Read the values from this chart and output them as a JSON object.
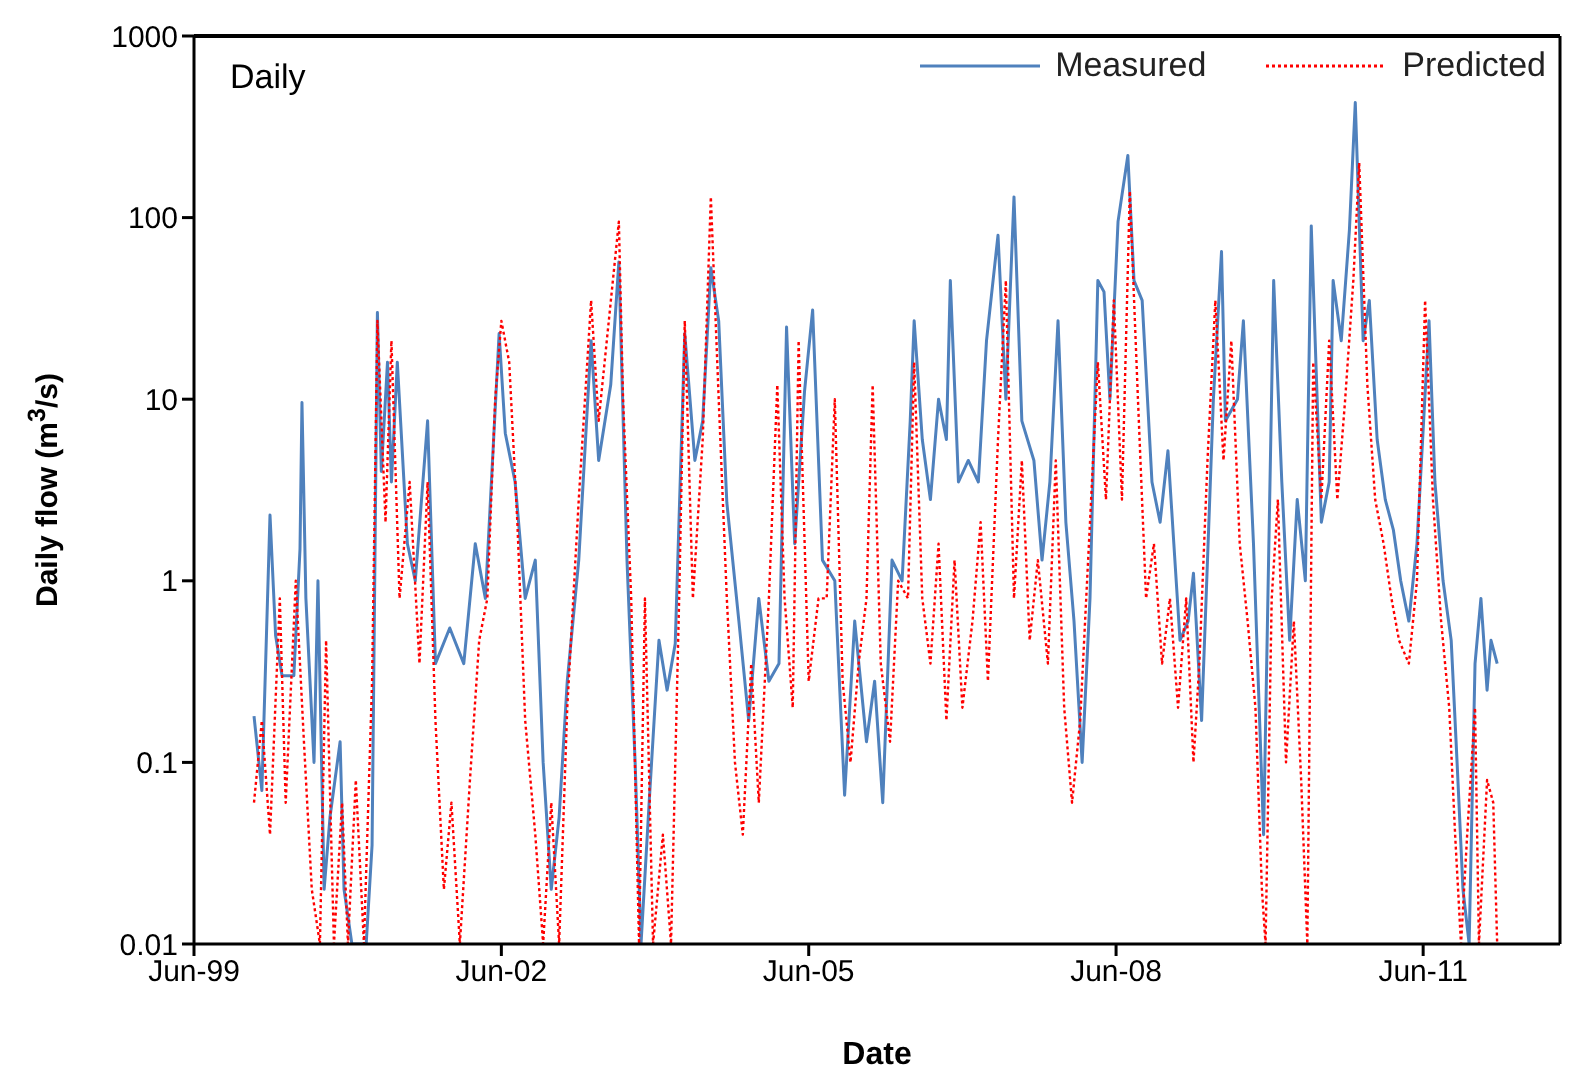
{
  "chart_data": {
    "type": "line",
    "title": "Daily",
    "xlabel": "Date",
    "ylabel": "Daily flow (m$^{3}$/s)",
    "xlim": [
      "1999-06-01",
      "2012-10-01"
    ],
    "xticks": [
      {
        "value": "1999-06-01",
        "label": "Jun-99"
      },
      {
        "value": "2002-06-01",
        "label": "Jun-02"
      },
      {
        "value": "2005-06-01",
        "label": "Jun-05"
      },
      {
        "value": "2008-06-01",
        "label": "Jun-08"
      },
      {
        "value": "2011-06-01",
        "label": "Jun-11"
      }
    ],
    "ylim": [
      0.01,
      1000
    ],
    "yticks": [
      0.01,
      0.1,
      1,
      10,
      100,
      1000
    ],
    "log": "y",
    "legend": "top right",
    "marker": "none",
    "series": [
      {
        "name": "Measured",
        "color": "#4f81bd",
        "line_style": "solid",
        "x": [
          "2000-01-01",
          "2000-01-29",
          "2000-02-27",
          "2000-03-18",
          "2000-04-10",
          "2000-05-22",
          "2000-06-13",
          "2000-06-20",
          "2000-07-04",
          "2000-08-02",
          "2000-08-16",
          "2000-09-07",
          "2000-09-28",
          "2000-11-03",
          "2000-11-17",
          "2000-12-15",
          "2001-02-04",
          "2001-02-25",
          "2001-03-16",
          "2001-03-30",
          "2001-04-21",
          "2001-05-05",
          "2001-05-26",
          "2001-07-01",
          "2001-07-29",
          "2001-09-11",
          "2001-10-09",
          "2001-11-29",
          "2002-01-18",
          "2002-02-28",
          "2002-04-05",
          "2002-05-24",
          "2002-06-15",
          "2002-07-20",
          "2002-08-25",
          "2002-09-30",
          "2002-10-28",
          "2002-11-26",
          "2002-12-24",
          "2003-01-22",
          "2003-03-04",
          "2003-04-17",
          "2003-05-14",
          "2003-06-26",
          "2003-07-25",
          "2003-08-23",
          "2003-09-21",
          "2003-10-12",
          "2003-11-10",
          "2003-12-15",
          "2004-01-13",
          "2004-02-11",
          "2004-03-16",
          "2004-04-21",
          "2004-05-19",
          "2004-06-17",
          "2004-07-15",
          "2004-08-13",
          "2004-09-25",
          "2004-10-30",
          "2004-12-05",
          "2005-01-10",
          "2005-02-15",
          "2005-03-14",
          "2005-04-12",
          "2005-05-17",
          "2005-06-15",
          "2005-07-20",
          "2005-09-02",
          "2005-10-07",
          "2005-11-12",
          "2005-12-24",
          "2006-01-22",
          "2006-02-20",
          "2006-03-25",
          "2006-04-30",
          "2006-05-29",
          "2006-06-12",
          "2006-07-11",
          "2006-08-09",
          "2006-09-07",
          "2006-10-05",
          "2006-10-19",
          "2006-11-17",
          "2006-12-22",
          "2007-01-27",
          "2007-02-25",
          "2007-04-07",
          "2007-05-05",
          "2007-06-03",
          "2007-07-01",
          "2007-08-13",
          "2007-09-11",
          "2007-10-09",
          "2007-11-07",
          "2007-12-05",
          "2008-01-03",
          "2008-02-01",
          "2008-02-29",
          "2008-03-28",
          "2008-04-19",
          "2008-05-10",
          "2008-06-08",
          "2008-07-13",
          "2008-08-04",
          "2008-09-02",
          "2008-10-07",
          "2008-11-05",
          "2008-12-03",
          "2008-12-24",
          "2009-01-15",
          "2009-02-13",
          "2009-03-04",
          "2009-04-02",
          "2009-04-23",
          "2009-05-14",
          "2009-06-12",
          "2009-06-26",
          "2009-08-08",
          "2009-08-29",
          "2009-10-04",
          "2009-11-09",
          "2009-12-15",
          "2010-01-13",
          "2010-02-10",
          "2010-03-09",
          "2010-04-07",
          "2010-04-28",
          "2010-06-03",
          "2010-07-01",
          "2010-07-15",
          "2010-08-13",
          "2010-09-11",
          "2010-10-02",
          "2010-10-30",
          "2010-11-21",
          "2010-12-19",
          "2011-01-17",
          "2011-02-15",
          "2011-03-13",
          "2011-04-11",
          "2011-05-10",
          "2011-06-22",
          "2011-07-13",
          "2011-08-11",
          "2011-09-09",
          "2011-09-30",
          "2011-10-21",
          "2011-11-12",
          "2011-12-03",
          "2011-12-24",
          "2012-01-15",
          "2012-01-29",
          "2012-02-20"
        ],
        "values": [
          0.18,
          0.07,
          2.3,
          0.5,
          0.3,
          0.3,
          1.5,
          9.6,
          0.8,
          0.1,
          1,
          0.02,
          0.05,
          0.13,
          0.02,
          0.01,
          0.01,
          0.035,
          30,
          4,
          16,
          3.5,
          16,
          1.6,
          1,
          7.6,
          0.35,
          0.55,
          0.35,
          1.6,
          0.8,
          23,
          6.5,
          3.5,
          0.8,
          1.3,
          0.1,
          0.02,
          0.05,
          0.28,
          1.3,
          21,
          4.6,
          12,
          57,
          1.3,
          0.1,
          0.01,
          0.06,
          0.47,
          0.25,
          0.45,
          23,
          4.6,
          7.6,
          53,
          27,
          2.7,
          0.6,
          0.17,
          0.8,
          0.28,
          0.35,
          25,
          1.6,
          11,
          31,
          1.3,
          1,
          0.066,
          0.6,
          0.13,
          0.28,
          0.06,
          1.3,
          1,
          7.6,
          27,
          6,
          2.8,
          10,
          6,
          45,
          3.5,
          4.6,
          3.5,
          21,
          80,
          10,
          130,
          7.6,
          4.6,
          1.3,
          3.5,
          27,
          2.1,
          0.6,
          0.1,
          0.8,
          45,
          39,
          10,
          95,
          220,
          45,
          35,
          3.5,
          2.1,
          5.2,
          1.6,
          0.47,
          0.6,
          1.1,
          0.17,
          1.3,
          10,
          65,
          7.6,
          10,
          27,
          1.6,
          0.04,
          45,
          3.5,
          0.47,
          2.8,
          1,
          90,
          2.1,
          3.5,
          45,
          21,
          85,
          430,
          21,
          35,
          6,
          2.8,
          1.9,
          1,
          0.6,
          1.6,
          27,
          3.5,
          1,
          0.47,
          0.1,
          0.02,
          0.01,
          0.35,
          0.8,
          0.25,
          0.47,
          0.35
        ]
      },
      {
        "name": "Predicted",
        "color": "#ff0000",
        "line_style": "dotted",
        "x": [
          "2000-01-01",
          "2000-01-29",
          "2000-02-27",
          "2000-04-02",
          "2000-04-23",
          "2000-05-29",
          "2000-06-27",
          "2000-07-25",
          "2000-08-23",
          "2000-09-14",
          "2000-10-12",
          "2000-11-10",
          "2000-12-01",
          "2000-12-29",
          "2001-01-27",
          "2001-02-25",
          "2001-03-16",
          "2001-04-14",
          "2001-05-05",
          "2001-06-03",
          "2001-07-09",
          "2001-08-13",
          "2001-09-11",
          "2001-10-09",
          "2001-11-08",
          "2001-12-05",
          "2002-01-04",
          "2002-02-09",
          "2002-03-14",
          "2002-04-12",
          "2002-05-10",
          "2002-06-01",
          "2002-06-29",
          "2002-07-28",
          "2002-08-25",
          "2002-09-30",
          "2002-10-28",
          "2002-11-26",
          "2002-12-24",
          "2003-01-22",
          "2003-03-04",
          "2003-04-17",
          "2003-05-14",
          "2003-07-25",
          "2003-08-09",
          "2003-09-07",
          "2003-10-05",
          "2003-10-26",
          "2003-11-24",
          "2003-12-29",
          "2004-01-27",
          "2004-02-25",
          "2004-03-16",
          "2004-04-14",
          "2004-05-19",
          "2004-06-17",
          "2004-07-15",
          "2004-08-13",
          "2004-09-11",
          "2004-10-09",
          "2004-11-08",
          "2004-12-05",
          "2005-01-10",
          "2005-02-09",
          "2005-03-07",
          "2005-04-05",
          "2005-04-26",
          "2005-06-01",
          "2005-07-06",
          "2005-08-04",
          "2005-09-02",
          "2005-09-30",
          "2005-10-28",
          "2005-11-26",
          "2005-12-24",
          "2006-01-15",
          "2006-02-13",
          "2006-03-18",
          "2006-04-16",
          "2006-05-21",
          "2006-06-12",
          "2006-07-11",
          "2006-08-09",
          "2006-09-07",
          "2006-10-05",
          "2006-11-03",
          "2006-12-01",
          "2007-01-06",
          "2007-02-04",
          "2007-03-02",
          "2007-04-07",
          "2007-05-05",
          "2007-06-03",
          "2007-07-01",
          "2007-07-29",
          "2007-08-27",
          "2007-10-02",
          "2007-10-30",
          "2007-11-29",
          "2007-12-27",
          "2008-01-25",
          "2008-02-29",
          "2008-03-28",
          "2008-04-26",
          "2008-05-24",
          "2008-06-22",
          "2008-07-20",
          "2008-08-18",
          "2008-09-16",
          "2008-10-14",
          "2008-11-12",
          "2008-12-10",
          "2009-01-08",
          "2009-02-06",
          "2009-03-04",
          "2009-03-25",
          "2009-04-23",
          "2009-05-21",
          "2009-06-19",
          "2009-07-17",
          "2009-08-16",
          "2009-09-13",
          "2009-10-11",
          "2009-11-03",
          "2009-11-16",
          "2009-12-08",
          "2009-12-30",
          "2010-01-28",
          "2010-02-25",
          "2010-03-23",
          "2010-04-14",
          "2010-05-05",
          "2010-06-03",
          "2010-07-01",
          "2010-07-30",
          "2010-08-27",
          "2010-09-25",
          "2010-10-16",
          "2010-11-14",
          "2010-12-12",
          "2011-01-11",
          "2011-02-08",
          "2011-03-07",
          "2011-04-11",
          "2011-05-10",
          "2011-06-08",
          "2011-07-06",
          "2011-08-04",
          "2011-09-02",
          "2011-09-23",
          "2011-10-14",
          "2011-11-05",
          "2011-12-03",
          "2011-12-17",
          "2012-01-15",
          "2012-02-06",
          "2012-02-20"
        ],
        "values": [
          0.06,
          0.17,
          0.04,
          0.8,
          0.06,
          1,
          0.13,
          0.02,
          0.01,
          0.47,
          0.01,
          0.06,
          0.01,
          0.08,
          0.01,
          0.28,
          27,
          2.1,
          21,
          0.8,
          3.5,
          0.35,
          3.5,
          0.17,
          0.02,
          0.06,
          0.01,
          0.08,
          0.47,
          0.8,
          10,
          27,
          16,
          2.1,
          0.17,
          0.04,
          0.01,
          0.06,
          0.01,
          0.2,
          2.8,
          35,
          7.6,
          95,
          10,
          0.8,
          0.01,
          0.8,
          0.01,
          0.04,
          0.01,
          0.8,
          27,
          0.8,
          6,
          130,
          10,
          0.8,
          0.1,
          0.04,
          0.35,
          0.06,
          0.8,
          12,
          0.8,
          0.2,
          21,
          0.28,
          0.8,
          0.8,
          10,
          0.28,
          0.1,
          0.35,
          0.8,
          12,
          0.35,
          0.13,
          1,
          0.8,
          16,
          0.8,
          0.35,
          1.6,
          0.17,
          1.3,
          0.2,
          0.6,
          2.1,
          0.28,
          6,
          45,
          0.8,
          4.6,
          0.47,
          1.3,
          0.35,
          4.6,
          0.2,
          0.06,
          0.17,
          2.1,
          16,
          2.8,
          35,
          2.8,
          140,
          10,
          0.8,
          1.6,
          0.35,
          0.8,
          0.2,
          0.8,
          0.1,
          0.35,
          4.6,
          35,
          4.6,
          21,
          1.6,
          0.6,
          0.2,
          0.02,
          0.01,
          0.8,
          2.8,
          0.1,
          0.6,
          0.08,
          0.01,
          16,
          2.8,
          21,
          2.8,
          10,
          45,
          200,
          12,
          2.8,
          1.6,
          0.8,
          0.47,
          0.35,
          1,
          35,
          2.8,
          0.6,
          0.2,
          0.04,
          0.01,
          0.04,
          0.2,
          0.01,
          0.08,
          0.06,
          0.01
        ]
      }
    ]
  }
}
